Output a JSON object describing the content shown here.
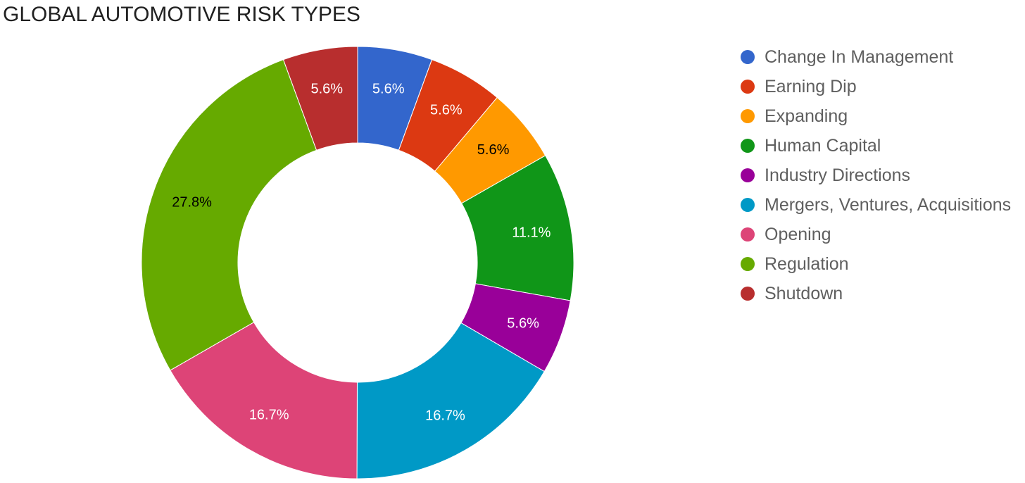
{
  "chart_data": {
    "type": "pie",
    "title": "GLOBAL AUTOMOTIVE RISK TYPES",
    "donut": true,
    "legend_position": "right",
    "slices": [
      {
        "name": "Change In Management",
        "value": 5.6,
        "label": "5.6%",
        "color": "#3366cc",
        "label_color": "#ffffff"
      },
      {
        "name": "Earning Dip",
        "value": 5.6,
        "label": "5.6%",
        "color": "#dc3912",
        "label_color": "#ffffff"
      },
      {
        "name": "Expanding",
        "value": 5.6,
        "label": "5.6%",
        "color": "#ff9900",
        "label_color": "#000000"
      },
      {
        "name": "Human Capital",
        "value": 11.1,
        "label": "11.1%",
        "color": "#109618",
        "label_color": "#ffffff"
      },
      {
        "name": "Industry Directions",
        "value": 5.6,
        "label": "5.6%",
        "color": "#990099",
        "label_color": "#ffffff"
      },
      {
        "name": "Mergers, Ventures, Acquisitions",
        "value": 16.7,
        "label": "16.7%",
        "color": "#0099c6",
        "label_color": "#ffffff"
      },
      {
        "name": "Opening",
        "value": 16.7,
        "label": "16.7%",
        "color": "#dd4477",
        "label_color": "#ffffff"
      },
      {
        "name": "Regulation",
        "value": 27.8,
        "label": "27.8%",
        "color": "#66aa00",
        "label_color": "#000000"
      },
      {
        "name": "Shutdown",
        "value": 5.6,
        "label": "5.6%",
        "color": "#b82e2e",
        "label_color": "#ffffff"
      }
    ]
  }
}
